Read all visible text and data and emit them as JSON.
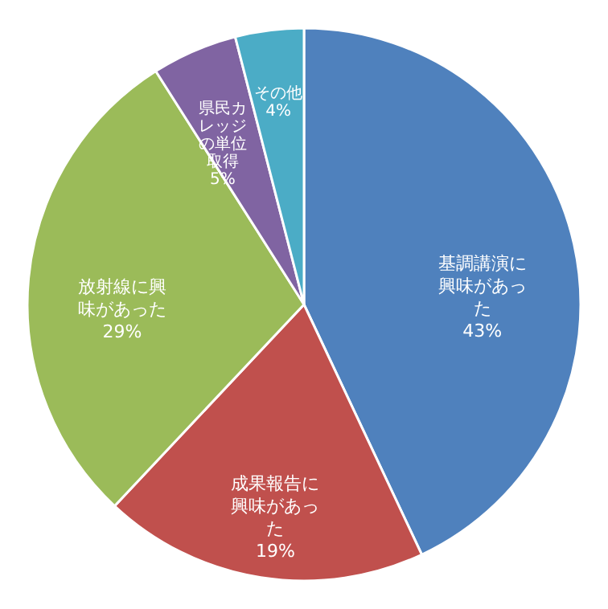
{
  "chart_data": {
    "type": "pie",
    "categories": [
      "基調講演に興味があった",
      "成果報告に興味があった",
      "放射線に興味があった",
      "県民カレッジの単位取得",
      "その他"
    ],
    "values": [
      43,
      19,
      29,
      5,
      4
    ],
    "colors": [
      "#4f81bd",
      "#c0504d",
      "#9bbb59",
      "#8064a2",
      "#4bacc6"
    ],
    "value_labels": [
      "43%",
      "19%",
      "29%",
      "5%",
      "4%"
    ],
    "legend": false
  }
}
